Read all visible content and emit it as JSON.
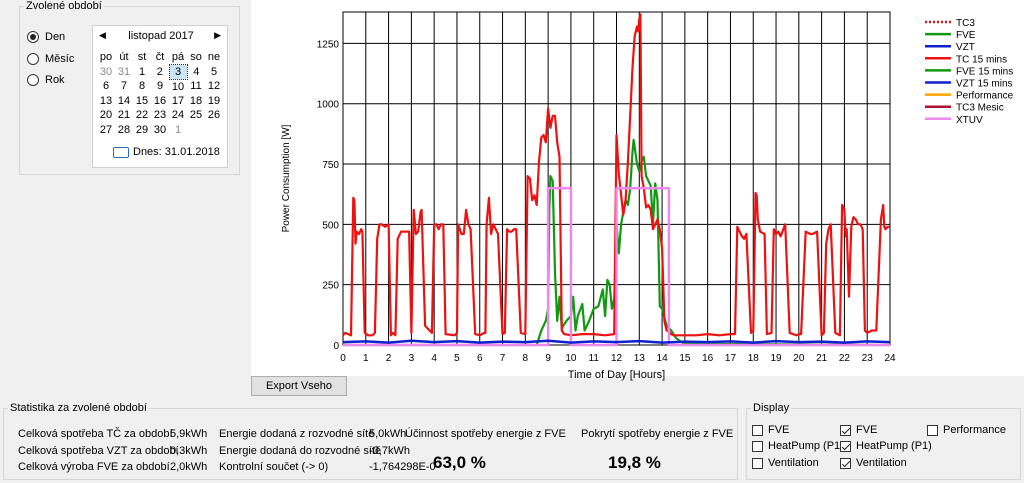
{
  "period": {
    "legend": "Zvolené období",
    "options": [
      {
        "label": "Den",
        "checked": true
      },
      {
        "label": "Měsíc",
        "checked": false
      },
      {
        "label": "Rok",
        "checked": false
      }
    ]
  },
  "calendar": {
    "title": "listopad 2017",
    "prev": "◀",
    "next": "▶",
    "weekdays": [
      "po",
      "út",
      "st",
      "čt",
      "pá",
      "so",
      "ne"
    ],
    "weeks": [
      [
        "30",
        "31",
        "1",
        "2",
        "3",
        "4",
        "5"
      ],
      [
        "6",
        "7",
        "8",
        "9",
        "10",
        "11",
        "12"
      ],
      [
        "13",
        "14",
        "15",
        "16",
        "17",
        "18",
        "19"
      ],
      [
        "20",
        "21",
        "22",
        "23",
        "24",
        "25",
        "26"
      ],
      [
        "27",
        "28",
        "29",
        "30",
        "1",
        "",
        ""
      ]
    ],
    "selected_day": "3",
    "today_label": "Dnes: 31.01.2018"
  },
  "export_button": "Export Vseho",
  "stats": {
    "legend": "Statistika za zvolené období",
    "rows": [
      {
        "label": "Celková spotřeba TČ za období",
        "value": "5,9kWh",
        "label2": "Energie dodaná z rozvodné sítě",
        "value2": "5,0kWh"
      },
      {
        "label": "Celková spotřeba VZT za období",
        "value": "0,3kWh",
        "label2": "Energie dodaná do rozvodné sítě",
        "value2": "-0,7kWh"
      },
      {
        "label": "Celková výroba FVE za období",
        "value": "2,0kWh",
        "label2": "Kontrolní součet (-> 0)",
        "value2": "-1,764298E-0"
      }
    ],
    "efficiency_label": "Účinnost spotřeby energie z FVE",
    "efficiency_value": "63,0 %",
    "coverage_label": "Pokrytí spotřeby energie z FVE",
    "coverage_value": "19,8 %"
  },
  "display": {
    "legend": "Display",
    "items": [
      {
        "label": "FVE",
        "checked": false
      },
      {
        "label": "HeatPump (P1)",
        "checked": false
      },
      {
        "label": "Ventilation",
        "checked": false
      },
      {
        "label": "FVE",
        "checked": true
      },
      {
        "label": "HeatPump (P1)",
        "checked": true
      },
      {
        "label": "Ventilation",
        "checked": true
      },
      {
        "label": "Performance",
        "checked": false
      }
    ]
  },
  "colors": {
    "tc": "#ee1111",
    "fve": "#119911",
    "vzt": "#1020cc",
    "performance": "#ffa500",
    "tc3_mesic": "#b01030",
    "xtuv": "#ee88ee",
    "selection": "#cce4f7"
  },
  "chart_data": {
    "type": "line",
    "xlabel": "Time of Day [Hours]",
    "ylabel": "Power Consumption [W]",
    "xlim": [
      0,
      24
    ],
    "ylim": [
      0,
      1380
    ],
    "xticks": [
      "0",
      "1",
      "2",
      "3",
      "4",
      "5",
      "6",
      "7",
      "8",
      "9",
      "10",
      "11",
      "12",
      "13",
      "14",
      "15",
      "16",
      "17",
      "18",
      "19",
      "20",
      "21",
      "22",
      "23",
      "24"
    ],
    "yticks": [
      "0",
      "250",
      "500",
      "750",
      "1000",
      "1250"
    ],
    "grid": true,
    "legend_position": "right",
    "legend": [
      {
        "name": "TC3",
        "style": "dotted",
        "color": "#ee1111"
      },
      {
        "name": "FVE",
        "style": "solid",
        "color": "#119911"
      },
      {
        "name": "VZT",
        "style": "solid",
        "color": "#1020cc"
      },
      {
        "name": "TC 15 mins",
        "style": "solid",
        "color": "#ee1111"
      },
      {
        "name": "FVE 15 mins",
        "style": "solid",
        "color": "#119911"
      },
      {
        "name": "VZT 15 mins",
        "style": "solid",
        "color": "#1020cc"
      },
      {
        "name": "Performance",
        "style": "solid",
        "color": "#ffa500"
      },
      {
        "name": "TC3 Mesic",
        "style": "solid",
        "color": "#b01030"
      },
      {
        "name": "XTUV",
        "style": "solid",
        "color": "#ee88ee"
      }
    ],
    "series": [
      {
        "name": "TC 15 mins",
        "color": "#ee1111",
        "x": [
          0,
          0.1,
          0.35,
          0.45,
          0.5,
          0.55,
          0.6,
          0.7,
          0.8,
          0.85,
          0.95,
          1.1,
          1.3,
          1.4,
          1.5,
          1.6,
          1.7,
          1.85,
          2.0,
          2.1,
          2.2,
          2.3,
          2.4,
          2.55,
          2.7,
          2.9,
          3.0,
          3.1,
          3.2,
          3.3,
          3.4,
          3.45,
          3.6,
          3.8,
          3.9,
          4.0,
          4.1,
          4.2,
          4.3,
          4.4,
          4.5,
          4.9,
          5.0,
          5.05,
          5.2,
          5.3,
          5.4,
          5.5,
          5.6,
          5.8,
          6.0,
          6.1,
          6.2,
          6.25,
          6.3,
          6.4,
          6.5,
          6.6,
          6.8,
          7.0,
          7.1,
          7.2,
          7.3,
          7.4,
          7.5,
          7.6,
          7.8,
          8.0,
          8.1,
          8.2,
          8.3,
          8.4,
          8.5,
          8.6,
          8.7,
          8.8,
          8.9,
          9.0,
          9.1,
          9.2,
          9.3,
          9.4,
          9.5,
          9.6,
          9.7,
          10.0,
          10.5,
          11.0,
          11.5,
          11.9,
          12.0,
          12.1,
          12.3,
          12.4,
          12.5,
          12.6,
          12.7,
          12.8,
          12.9,
          12.95,
          13.0,
          13.05,
          13.1,
          13.2,
          13.3,
          13.4,
          13.5,
          13.6,
          13.7,
          13.8,
          13.9,
          14.0,
          14.1,
          14.2,
          14.3,
          14.4,
          14.5,
          15.0,
          15.5,
          16.0,
          16.5,
          17.0,
          17.2,
          17.3,
          17.4,
          17.5,
          17.6,
          17.7,
          17.9,
          18.0,
          18.1,
          18.15,
          18.2,
          18.3,
          18.5,
          18.6,
          18.8,
          18.9,
          19.0,
          19.1,
          19.2,
          19.4,
          19.6,
          19.9,
          20.0,
          20.1,
          20.3,
          20.5,
          20.6,
          20.8,
          21.0,
          21.1,
          21.2,
          21.3,
          21.4,
          21.6,
          21.8,
          21.9,
          22.0,
          22.05,
          22.1,
          22.2,
          22.3,
          22.4,
          22.5,
          22.6,
          22.7,
          22.8,
          22.9,
          23.0,
          23.2,
          23.4,
          23.6,
          23.7,
          23.75,
          23.8,
          23.9,
          24.0
        ],
        "y": [
          40,
          50,
          40,
          610,
          600,
          420,
          470,
          460,
          480,
          470,
          50,
          40,
          40,
          50,
          440,
          500,
          500,
          490,
          500,
          40,
          50,
          40,
          440,
          470,
          470,
          470,
          50,
          560,
          460,
          470,
          550,
          560,
          80,
          60,
          50,
          500,
          500,
          480,
          500,
          500,
          45,
          40,
          50,
          500,
          460,
          460,
          560,
          500,
          480,
          45,
          40,
          45,
          50,
          50,
          500,
          610,
          460,
          500,
          460,
          45,
          50,
          480,
          470,
          470,
          480,
          480,
          50,
          45,
          700,
          690,
          600,
          620,
          580,
          760,
          860,
          870,
          840,
          980,
          900,
          950,
          950,
          840,
          780,
          60,
          45,
          40,
          45,
          45,
          40,
          45,
          870,
          710,
          540,
          600,
          760,
          950,
          1150,
          1280,
          1320,
          1300,
          1350,
          1370,
          700,
          650,
          570,
          580,
          560,
          480,
          500,
          520,
          480,
          400,
          100,
          60,
          55,
          45,
          40,
          40,
          40,
          45,
          40,
          45,
          45,
          490,
          470,
          450,
          440,
          460,
          50,
          60,
          630,
          620,
          520,
          470,
          460,
          45,
          50,
          480,
          460,
          470,
          450,
          500,
          50,
          40,
          45,
          45,
          470,
          460,
          460,
          470,
          40,
          50,
          420,
          480,
          500,
          50,
          40,
          580,
          560,
          450,
          480,
          200,
          490,
          530,
          520,
          500,
          500,
          480,
          60,
          50,
          60,
          60,
          520,
          580,
          490,
          480,
          490,
          490
        ]
      },
      {
        "name": "FVE 15 mins",
        "color": "#119911",
        "x": [
          0,
          8.5,
          8.7,
          8.9,
          9.0,
          9.05,
          9.1,
          9.2,
          9.3,
          9.4,
          9.5,
          9.6,
          9.8,
          10.0,
          10.1,
          10.2,
          10.3,
          10.5,
          10.6,
          10.8,
          11.0,
          11.2,
          11.4,
          11.5,
          11.6,
          11.7,
          11.8,
          11.9,
          12.0,
          12.1,
          12.2,
          12.3,
          12.4,
          12.5,
          12.6,
          12.7,
          12.75,
          12.8,
          12.9,
          13.0,
          13.1,
          13.2,
          13.3,
          13.5,
          13.6,
          13.7,
          13.8,
          13.9,
          14.0,
          14.2,
          14.4,
          14.6,
          14.8,
          15.0,
          24.0
        ],
        "y": [
          0,
          0,
          60,
          100,
          150,
          560,
          700,
          680,
          300,
          100,
          200,
          70,
          100,
          120,
          200,
          60,
          120,
          170,
          60,
          100,
          150,
          160,
          230,
          120,
          270,
          250,
          150,
          190,
          500,
          380,
          500,
          550,
          600,
          580,
          650,
          800,
          850,
          820,
          750,
          720,
          760,
          780,
          700,
          660,
          500,
          670,
          600,
          160,
          150,
          80,
          60,
          30,
          15,
          5,
          0
        ]
      },
      {
        "name": "VZT 15 mins",
        "color": "#1020cc",
        "x": [
          0,
          1,
          2,
          3,
          4,
          5,
          6,
          7,
          8,
          9,
          10,
          11,
          12,
          13,
          14,
          15,
          16,
          17,
          18,
          19,
          20,
          21,
          22,
          23,
          24
        ],
        "y": [
          12,
          15,
          10,
          18,
          12,
          16,
          10,
          14,
          12,
          18,
          10,
          15,
          12,
          16,
          10,
          14,
          12,
          15,
          10,
          16,
          12,
          14,
          10,
          15,
          12
        ]
      },
      {
        "name": "XTUV",
        "color": "#ee88ee",
        "x": [
          0,
          9.0,
          9.0,
          10.0,
          10.0,
          12.0,
          12.0,
          14.3,
          14.3,
          24.0
        ],
        "y": [
          0,
          0,
          650,
          650,
          0,
          0,
          650,
          650,
          0,
          0
        ]
      }
    ]
  }
}
